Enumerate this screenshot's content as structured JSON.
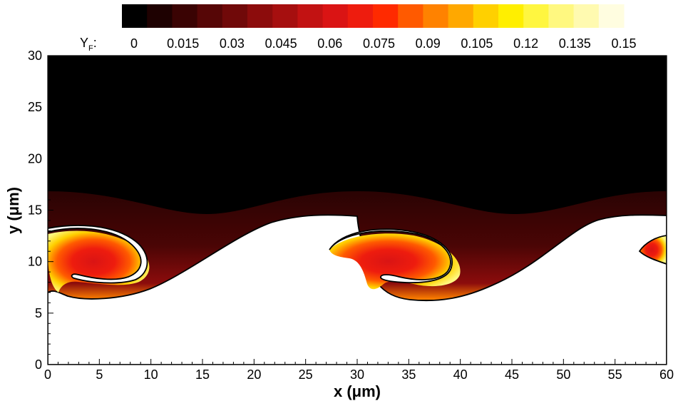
{
  "chart_data": {
    "type": "heatmap",
    "title": "",
    "xlabel": "x (μm)",
    "ylabel": "y (μm)",
    "xlim": [
      0,
      60
    ],
    "ylim": [
      0,
      30
    ],
    "x_ticks": [
      0,
      5,
      10,
      15,
      20,
      25,
      30,
      35,
      40,
      45,
      50,
      55,
      60
    ],
    "x_tick_labels": [
      "0",
      "5",
      "10",
      "15",
      "20",
      "25",
      "30",
      "35",
      "40",
      "45",
      "50",
      "55",
      "60"
    ],
    "y_ticks": [
      0,
      5,
      10,
      15,
      20,
      25,
      30
    ],
    "y_tick_labels": [
      "0",
      "5",
      "10",
      "15",
      "20",
      "25",
      "30"
    ],
    "grid": false,
    "colorbar": {
      "placement": "top",
      "label_main": "Y",
      "label_sub": "F",
      "label_suffix": ":",
      "levels": [
        0,
        0.015,
        0.03,
        0.045,
        0.06,
        0.075,
        0.09,
        0.105,
        0.12,
        0.135,
        0.15
      ],
      "level_labels": [
        "0",
        "0.015",
        "0.03",
        "0.045",
        "0.06",
        "0.075",
        "0.09",
        "0.105",
        "0.12",
        "0.135",
        "0.15"
      ],
      "colors": [
        "#000000",
        "#1e0101",
        "#3a0303",
        "#560606",
        "#700909",
        "#8c0c0c",
        "#a60f0f",
        "#c21212",
        "#da1414",
        "#ee1c0e",
        "#ff2a00",
        "#ff5a00",
        "#ff8200",
        "#ffa800",
        "#ffd000",
        "#ffef00",
        "#fff640",
        "#fff880",
        "#fffab0",
        "#fffde0"
      ]
    },
    "field": {
      "description_free": true,
      "upper_region_value": 0.0,
      "lower_region_value": 0.0,
      "period_x": 30,
      "interface_mean_y": 11,
      "interface_amplitude": 3.5,
      "outer_band_y_range": [
        14.5,
        17
      ],
      "vortex_centers": [
        {
          "x": 3,
          "y": 11
        },
        {
          "x": 33,
          "y": 11
        }
      ],
      "peak_value": 0.15
    }
  }
}
